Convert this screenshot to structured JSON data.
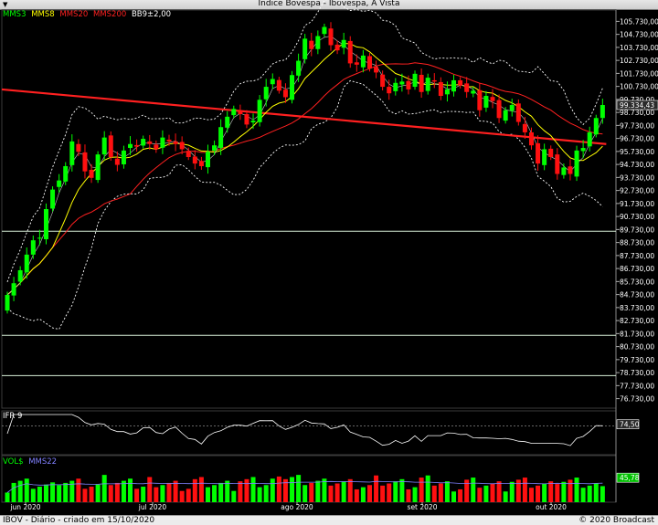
{
  "window": {
    "title": "Índice Bovespa - Ibovespa, À Vista"
  },
  "main_panel": {
    "legend": [
      {
        "label": "MMS3",
        "color": "#00ff00"
      },
      {
        "label": "MMS8",
        "color": "#ffff00"
      },
      {
        "label": "MMS20",
        "color": "#ff2020"
      },
      {
        "label": "MMS200",
        "color": "#ff2020"
      },
      {
        "label": "BB9±2,00",
        "color": "#ffffff"
      }
    ],
    "last_price_label": "99.334,43",
    "y_ticks": [
      "105.730,00",
      "104.730,00",
      "103.730,00",
      "102.730,00",
      "101.730,00",
      "100.730,00",
      "99.730,00",
      "98.730,00",
      "97.730,00",
      "96.730,00",
      "95.730,00",
      "94.730,00",
      "93.730,00",
      "92.730,00",
      "91.730,00",
      "90.730,00",
      "89.730,00",
      "88.730,00",
      "87.730,00",
      "86.730,00",
      "85.730,00",
      "84.730,00",
      "83.730,00",
      "82.730,00",
      "81.730,00",
      "80.730,00",
      "79.730,00",
      "78.730,00",
      "77.730,00",
      "76.730,00"
    ]
  },
  "ifr_panel": {
    "title": "IFR 9",
    "last_label": "74,50"
  },
  "vol_panel": {
    "title": "VOL$",
    "ma_label": "MMS22",
    "last_label": "45,78"
  },
  "x_labels": [
    "jun 2020",
    "jul 2020",
    "ago 2020",
    "set 2020",
    "out 2020"
  ],
  "footer": {
    "left": "IBOV - Diário - criado em 15/10/2020",
    "right": "© 2020 Broadcast"
  },
  "colors": {
    "up": "#00ff00",
    "down": "#ff1010",
    "ma_short": "#00ff00",
    "ma_mid": "#ffff00",
    "ma_long": "#ff2020",
    "band": "#ffffff"
  },
  "chart_data": {
    "type": "candlestick",
    "title": "Índice Bovespa - Ibovespa, À Vista",
    "x_axis": {
      "labels": [
        "jun 2020",
        "jul 2020",
        "ago 2020",
        "set 2020",
        "out 2020"
      ]
    },
    "y_axis": {
      "range": [
        76000,
        106600
      ],
      "tick_step": 1000
    },
    "horizontal_lines": [
      89600,
      81600,
      78500
    ],
    "ma200_line": {
      "start": 100500,
      "end": 96300
    },
    "closes": [
      84700,
      85600,
      86600,
      87800,
      88900,
      89100,
      91300,
      92800,
      93500,
      94600,
      96500,
      95700,
      94200,
      93700,
      95500,
      96800,
      95300,
      94700,
      95800,
      96300,
      96100,
      96700,
      96300,
      95900,
      96800,
      96500,
      96300,
      95900,
      95300,
      94800,
      94600,
      95700,
      96200,
      97600,
      98400,
      99000,
      98600,
      97800,
      98100,
      99700,
      100700,
      101300,
      100400,
      99900,
      101600,
      102700,
      104400,
      103600,
      104600,
      105300,
      103900,
      103500,
      104300,
      102500,
      102400,
      103100,
      102100,
      101800,
      100700,
      100200,
      101000,
      101100,
      100500,
      101700,
      100300,
      101400,
      101100,
      100000,
      100500,
      101200,
      100800,
      100300,
      100400,
      98900,
      100000,
      99600,
      98300,
      98900,
      99300,
      98000,
      97200,
      96200,
      94800,
      95900,
      95300,
      94000,
      94500,
      94000,
      95800,
      96000,
      97200,
      98300,
      99300
    ],
    "ifr9": {
      "last": 74.5,
      "reference_level": 70
    },
    "volume": {
      "ma_period": 22,
      "last": 45.78
    }
  }
}
